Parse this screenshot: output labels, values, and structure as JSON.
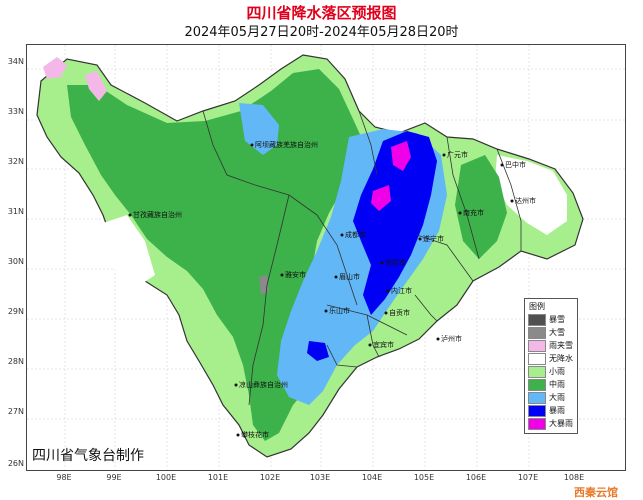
{
  "title": "四川省降水落区预报图",
  "subtitle": "2024年05月27日20时-2024年05月28日20时",
  "credit": "四川省气象台制作",
  "watermark": "西秦云馆",
  "axes": {
    "lat_labels": [
      "34N",
      "33N",
      "32N",
      "31N",
      "30N",
      "29N",
      "28N",
      "27N",
      "26N"
    ],
    "lon_labels": [
      "98E",
      "99E",
      "100E",
      "101E",
      "102E",
      "103E",
      "104E",
      "105E",
      "106E",
      "107E",
      "108E"
    ]
  },
  "cities": [
    {
      "name": "阿坝藏族羌族自治州"
    },
    {
      "name": "广元市"
    },
    {
      "name": "巴中市"
    },
    {
      "name": "达州市"
    },
    {
      "name": "南充市"
    },
    {
      "name": "遂宁市"
    },
    {
      "name": "甘孜藏族自治州"
    },
    {
      "name": "成都市"
    },
    {
      "name": "雅安市"
    },
    {
      "name": "眉山市"
    },
    {
      "name": "资阳市"
    },
    {
      "name": "乐山市"
    },
    {
      "name": "内江市"
    },
    {
      "name": "自贡市"
    },
    {
      "name": "宜宾市"
    },
    {
      "name": "泸州市"
    },
    {
      "name": "凉山彝族自治州"
    },
    {
      "name": "攀枝花市"
    }
  ],
  "legend": {
    "title": "图例",
    "items": [
      {
        "label": "暴雪",
        "color": "#505050"
      },
      {
        "label": "大雪",
        "color": "#8a8a8a"
      },
      {
        "label": "雨夹雪",
        "color": "#f4b8e8"
      },
      {
        "label": "无降水",
        "color": "#ffffff"
      },
      {
        "label": "小雨",
        "color": "#a6ef8c"
      },
      {
        "label": "中雨",
        "color": "#3db14a"
      },
      {
        "label": "大雨",
        "color": "#62b7f7"
      },
      {
        "label": "暴雨",
        "color": "#0000f5"
      },
      {
        "label": "大暴雨",
        "color": "#f000e8"
      }
    ]
  }
}
